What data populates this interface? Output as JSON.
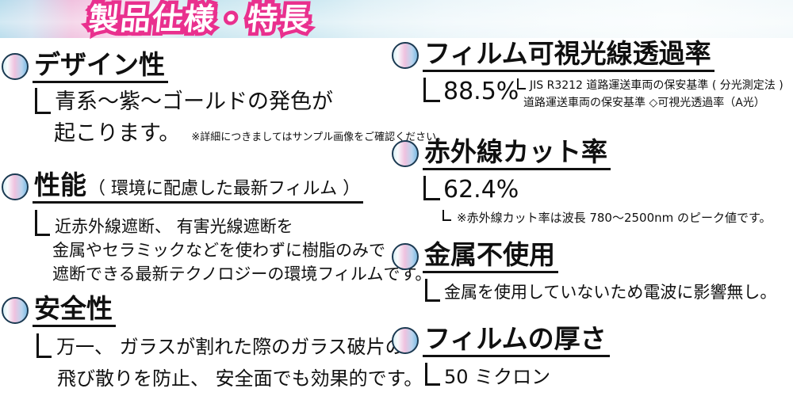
{
  "banner": {
    "title": "製品仕様・特長"
  },
  "sections": {
    "design": {
      "title": "デザイン性",
      "body_line1": "青系〜紫〜ゴールドの発色が",
      "body_line2": "起こります。",
      "note": "※詳細につきましてはサンプル画像をご確認ください。"
    },
    "performance": {
      "title": "性能",
      "title_note": "（ 環境に配慮した最新フィルム ）",
      "body_line1": "近赤外線遮断、 有害光線遮断を",
      "body_line2": "金属やセラミックなどを使わずに樹脂のみで",
      "body_line3": "遮断できる最新テクノロジーの環境フィルムです。"
    },
    "safety": {
      "title": "安全性",
      "body_line1": "万一、 ガラスが割れた際のガラス破片の",
      "body_line2": "飛び散りを防止、 安全面でも効果的です。"
    },
    "vlt": {
      "title": "フィルム可視光線透過率",
      "value": "88.5%",
      "note_line1": "JIS R3212 道路運送車両の保安基準 ( 分光測定法 )",
      "note_line2": "道路運送車両の保安基準 ◇可視光透過率（A光）"
    },
    "ir": {
      "title": "赤外線カット率",
      "value": "62.4%",
      "note": "※赤外線カット率は波長 780〜2500nm のピーク値です。"
    },
    "metal": {
      "title": "金属不使用",
      "body_line1": "金属を使用していないため電波に影響無し。"
    },
    "thickness": {
      "title": "フィルムの厚さ",
      "value": "50 ミクロン"
    }
  },
  "colors": {
    "accent_pink": "#e9308e",
    "text": "#101010",
    "bullet_cyan": "#d9f0f6",
    "bullet_pink": "#efc2df",
    "bullet_blue": "#7fbce4",
    "banner_blue": "#b7dcec",
    "banner_pink": "#f0c2df"
  }
}
